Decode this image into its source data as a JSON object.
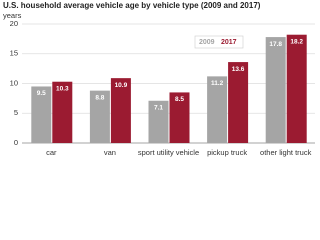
{
  "chart_data": {
    "type": "bar",
    "title": "U.S. household average vehicle age by vehicle type (2009 and 2017)",
    "y_label": "years",
    "categories": [
      "car",
      "van",
      "sport utility vehicle",
      "pickup truck",
      "other light truck"
    ],
    "series": [
      {
        "name": "2009",
        "color": "#a5a5a5",
        "values": [
          9.5,
          8.8,
          7.1,
          11.2,
          17.8
        ]
      },
      {
        "name": "2017",
        "color": "#9b1b31",
        "values": [
          10.3,
          10.9,
          8.5,
          13.6,
          18.2
        ]
      }
    ],
    "ylim": [
      0,
      20
    ],
    "yticks": [
      0,
      5,
      10,
      15,
      20
    ],
    "grid": true,
    "legend": "top-right"
  }
}
